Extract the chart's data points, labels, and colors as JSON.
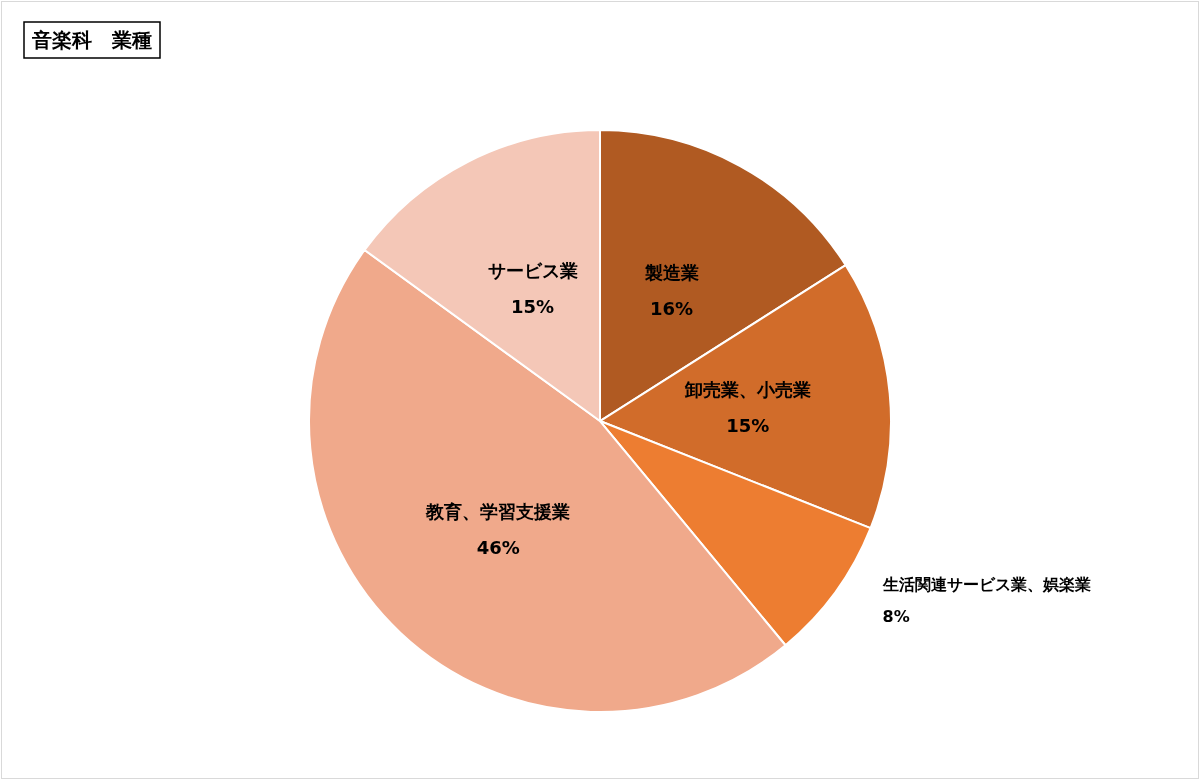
{
  "chart_data": {
    "type": "pie",
    "title": "音楽科　業種",
    "categories": [
      "製造業",
      "卸売業、小売業",
      "生活関連サービス業、娯楽業",
      "教育、学習支援業",
      "サービス業"
    ],
    "values": [
      16,
      15,
      8,
      46,
      15
    ],
    "colors": [
      "#b05a22",
      "#d16c2a",
      "#ed7d31",
      "#f0a98b",
      "#f4c7b7"
    ],
    "value_labels": [
      "16%",
      "15%",
      "8%",
      "46%",
      "15%"
    ],
    "legend": false
  }
}
